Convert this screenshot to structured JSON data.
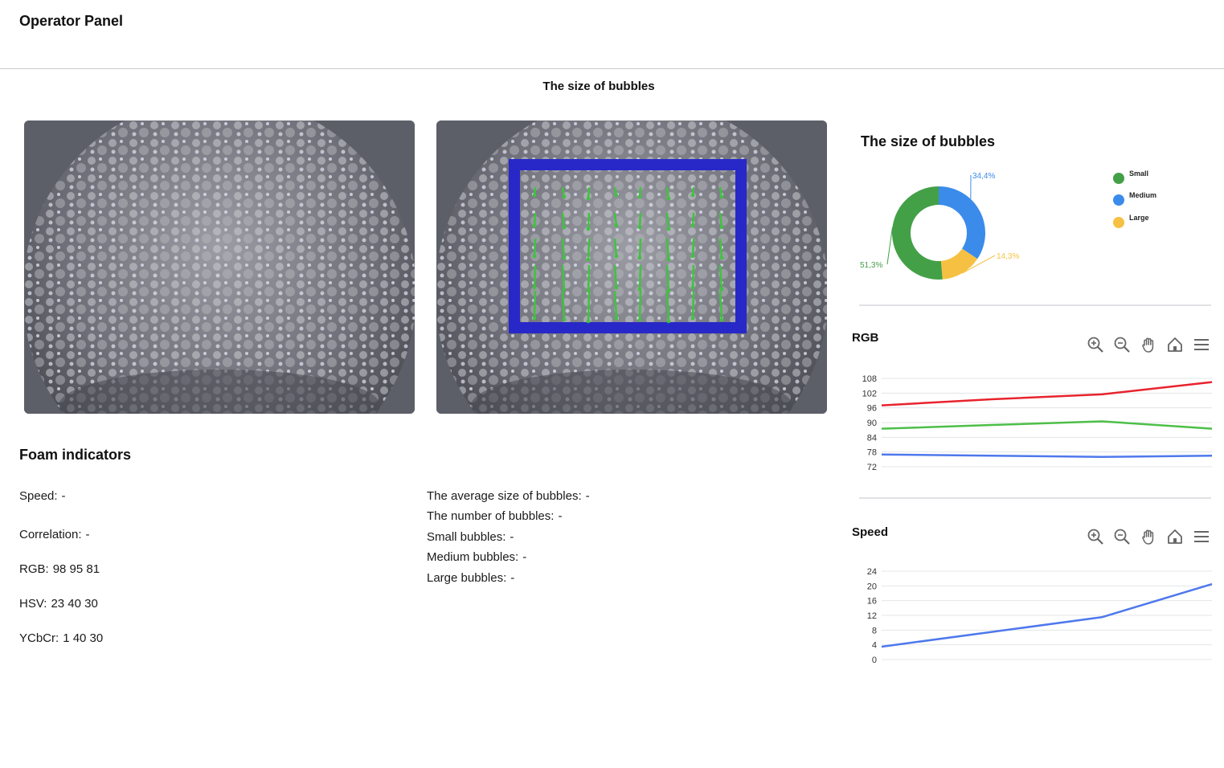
{
  "app": {
    "title": "Operator Panel"
  },
  "main": {
    "section_title": "The size of bubbles"
  },
  "images": {
    "left": {
      "icon": "foam-image"
    },
    "right": {
      "icon": "foam-image-with-motion-vectors",
      "overlay_color": "#2828c8",
      "vector_color": "#3fc33f"
    }
  },
  "indicators": {
    "heading": "Foam indicators",
    "left": [
      {
        "label": "Speed:",
        "value": "-"
      },
      {
        "label": "Correlation:",
        "value": "-"
      },
      {
        "label": "RGB:",
        "value": "98 95 81"
      },
      {
        "label": "HSV:",
        "value": "23 40 30"
      },
      {
        "label": "YCbCr:",
        "value": "1 40 30"
      }
    ],
    "right": [
      {
        "label": "The average size of bubbles:",
        "value": "-"
      },
      {
        "label": "The number of bubbles:",
        "value": "-"
      },
      {
        "label": "Small bubbles:",
        "value": "-"
      },
      {
        "label": "Medium bubbles:",
        "value": "-"
      },
      {
        "label": "Large bubbles:",
        "value": "-"
      }
    ]
  },
  "toolbar": {
    "icons": [
      "zoom-in-icon",
      "zoom-out-icon",
      "pan-hand-icon",
      "home-icon",
      "menu-icon"
    ]
  },
  "chart_data": [
    {
      "type": "pie",
      "title": "The size of bubbles",
      "categories": [
        "Small",
        "Medium",
        "Large"
      ],
      "values": [
        51.3,
        34.4,
        14.3
      ],
      "data_labels": [
        "51,3%",
        "34,4%",
        "14,3%"
      ],
      "colors": [
        "#43a047",
        "#3b8beb",
        "#f6c142"
      ],
      "legend": "right"
    },
    {
      "type": "line",
      "title": "RGB",
      "x": [
        0,
        1,
        2,
        3
      ],
      "series": [
        {
          "values": [
            97,
            99.5,
            101.5,
            106.5
          ],
          "color": "#e8232d"
        },
        {
          "values": [
            87.5,
            89,
            90.5,
            87.5
          ],
          "color": "#4dbf48"
        },
        {
          "values": [
            77,
            76.5,
            76,
            76.5
          ],
          "color": "#4e78ec"
        }
      ],
      "yticks": [
        72,
        78,
        84,
        90,
        96,
        102,
        108
      ],
      "ylim": [
        72,
        108
      ],
      "grid": true
    },
    {
      "type": "line",
      "title": "Speed",
      "x": [
        0,
        1,
        2,
        3
      ],
      "series": [
        {
          "values": [
            3.5,
            7.5,
            11.5,
            20.5
          ],
          "color": "#4e78ec"
        }
      ],
      "yticks": [
        0,
        4,
        8,
        12,
        16,
        20,
        24
      ],
      "ylim": [
        0,
        24
      ],
      "grid": true
    }
  ]
}
